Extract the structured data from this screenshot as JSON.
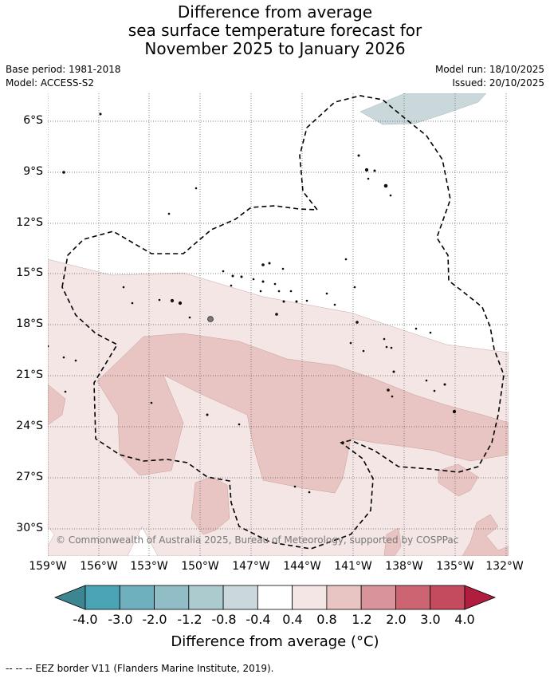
{
  "title": {
    "line1": "Difference from average",
    "line2": "sea surface temperature forecast for",
    "line3": "November 2025 to January 2026"
  },
  "meta": {
    "base_period": "Base period: 1981-2018",
    "model": "Model: ACCESS-S2",
    "model_run": "Model run: 18/10/2025",
    "issued": "Issued: 20/10/2025"
  },
  "map": {
    "lat_labels": [
      "6°S",
      "9°S",
      "12°S",
      "15°S",
      "18°S",
      "21°S",
      "24°S",
      "27°S",
      "30°S"
    ],
    "lon_labels": [
      "159°W",
      "156°W",
      "153°W",
      "150°W",
      "147°W",
      "144°W",
      "141°W",
      "138°W",
      "135°W",
      "132°W"
    ],
    "copyright": "© Commonwealth of Australia 2025, Bureau of Meteorology, supported by COSPPac"
  },
  "colorbar": {
    "ticks": [
      "-4.0",
      "-3.0",
      "-2.0",
      "-1.2",
      "-0.8",
      "-0.4",
      "0.4",
      "0.8",
      "1.2",
      "2.0",
      "3.0",
      "4.0"
    ],
    "colors": [
      "#3d8590",
      "#4aa4b5",
      "#6fb0be",
      "#90bdc6",
      "#abcbcf",
      "#cad8db",
      "#ffffff",
      "#f4e6e5",
      "#e8c5c2",
      "#d8949a",
      "#cc6472",
      "#c44a5d",
      "#b01d3e"
    ],
    "title": "Difference from average (°C)"
  },
  "legend": {
    "eez": "--  --  -- EEZ border V11 (Flanders Marine Institute, 2019)."
  }
}
